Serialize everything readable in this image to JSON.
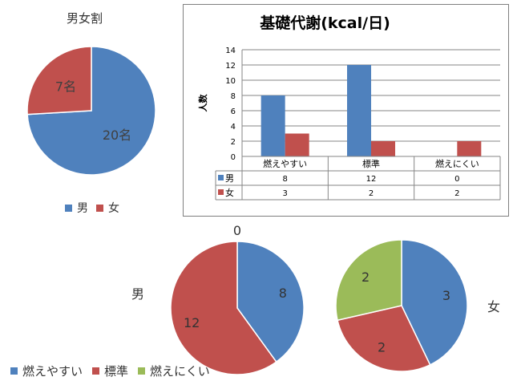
{
  "colors": {
    "blue": "#4f81bd",
    "red": "#c0504d",
    "green": "#9bbb59",
    "grid": "#868686"
  },
  "chart_data": [
    {
      "type": "pie",
      "title": "男女割",
      "categories": [
        "男",
        "女"
      ],
      "values": [
        20,
        7
      ],
      "data_labels": [
        "20名",
        "7名"
      ],
      "legend": {
        "placement": "bottom",
        "items": [
          "男",
          "女"
        ]
      }
    },
    {
      "type": "bar",
      "title": "基礎代謝(kcal/日)",
      "ylabel": "人数",
      "xlabel": "",
      "categories": [
        "燃えやすい",
        "標準",
        "燃えにくい"
      ],
      "series": [
        {
          "name": "男",
          "values": [
            8,
            12,
            0
          ]
        },
        {
          "name": "女",
          "values": [
            3,
            2,
            2
          ]
        }
      ],
      "ylim": [
        0,
        14
      ],
      "yticks": [
        "0",
        "2",
        "4",
        "6",
        "8",
        "10",
        "12",
        "14"
      ],
      "grid": true,
      "data_table": true
    },
    {
      "type": "pie",
      "title": "男",
      "categories": [
        "燃えやすい",
        "標準",
        "燃えにくい"
      ],
      "values": [
        8,
        12,
        0
      ],
      "data_labels": [
        "8",
        "12",
        "0"
      ]
    },
    {
      "type": "pie",
      "title": "女",
      "categories": [
        "燃えやすい",
        "標準",
        "燃えにくい"
      ],
      "values": [
        3,
        2,
        2
      ],
      "data_labels": [
        "3",
        "2",
        "2"
      ]
    }
  ],
  "bottom_legend": [
    "燃えやすい",
    "標準",
    "燃えにくい"
  ]
}
